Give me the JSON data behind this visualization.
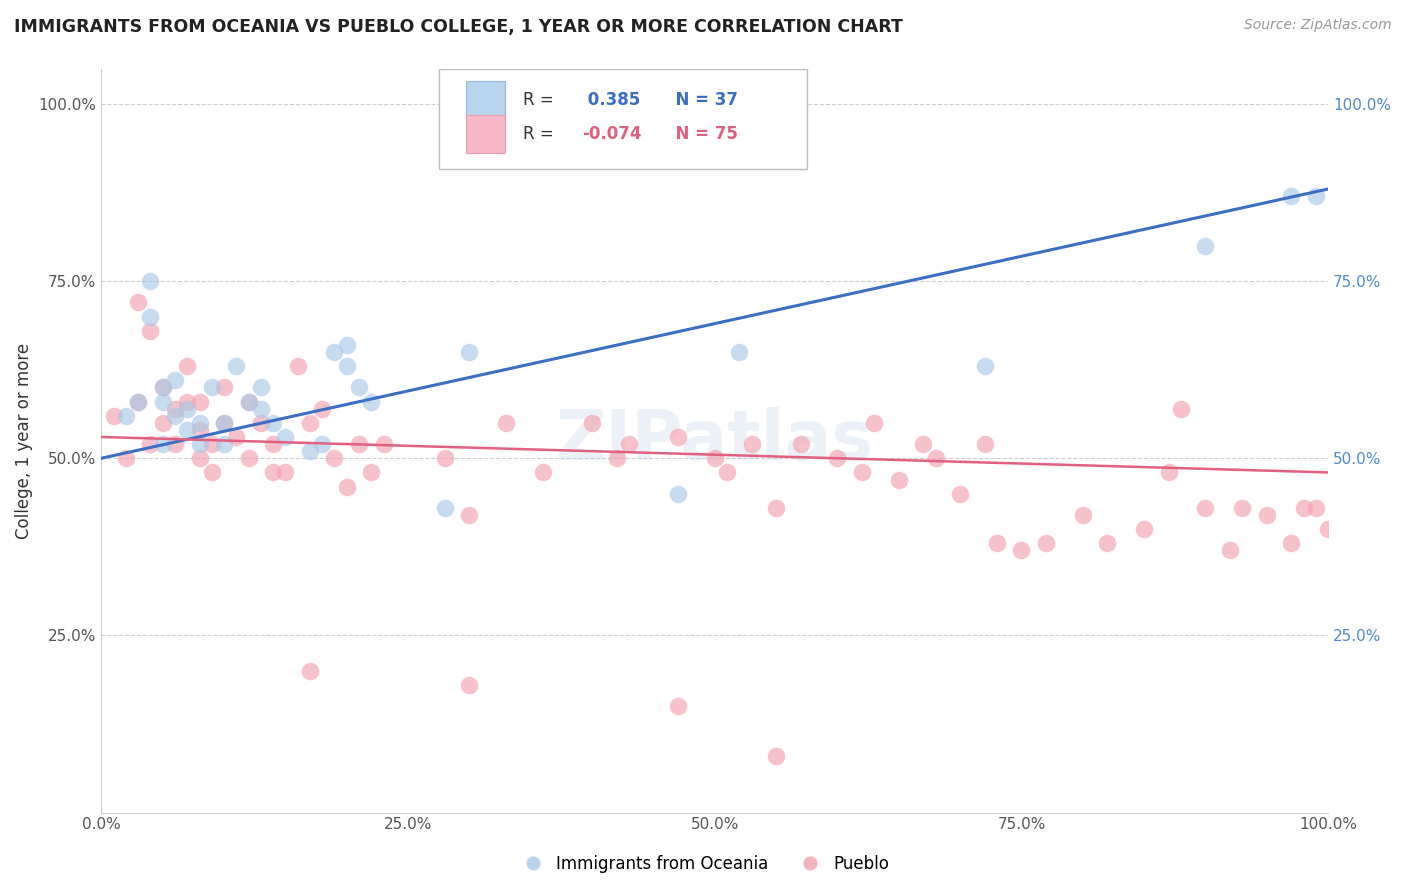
{
  "title": "IMMIGRANTS FROM OCEANIA VS PUEBLO COLLEGE, 1 YEAR OR MORE CORRELATION CHART",
  "source_text": "Source: ZipAtlas.com",
  "ylabel": "College, 1 year or more",
  "xlim": [
    0.0,
    1.0
  ],
  "ylim": [
    0.0,
    1.05
  ],
  "xtick_labels": [
    "0.0%",
    "25.0%",
    "50.0%",
    "75.0%",
    "100.0%"
  ],
  "xtick_vals": [
    0.0,
    0.25,
    0.5,
    0.75,
    1.0
  ],
  "ytick_labels": [
    "25.0%",
    "50.0%",
    "75.0%",
    "100.0%"
  ],
  "ytick_vals": [
    0.25,
    0.5,
    0.75,
    1.0
  ],
  "legend_entries": [
    "Immigrants from Oceania",
    "Pueblo"
  ],
  "R_blue": 0.385,
  "N_blue": 37,
  "R_pink": -0.074,
  "N_pink": 75,
  "blue_color": "#a8c8e8",
  "pink_color": "#f4a0b0",
  "blue_line_color": "#3a6fc4",
  "pink_line_color": "#e06080",
  "watermark": "ZIPatlas",
  "blue_scatter_x": [
    0.02,
    0.03,
    0.04,
    0.04,
    0.05,
    0.05,
    0.05,
    0.06,
    0.06,
    0.07,
    0.07,
    0.08,
    0.08,
    0.09,
    0.1,
    0.1,
    0.11,
    0.12,
    0.13,
    0.13,
    0.14,
    0.15,
    0.17,
    0.18,
    0.19,
    0.2,
    0.2,
    0.21,
    0.22,
    0.28,
    0.3,
    0.47,
    0.52,
    0.72,
    0.9,
    0.97,
    0.99
  ],
  "blue_scatter_y": [
    0.56,
    0.58,
    0.7,
    0.75,
    0.52,
    0.58,
    0.6,
    0.56,
    0.61,
    0.54,
    0.57,
    0.52,
    0.55,
    0.6,
    0.52,
    0.55,
    0.63,
    0.58,
    0.57,
    0.6,
    0.55,
    0.53,
    0.51,
    0.52,
    0.65,
    0.63,
    0.66,
    0.6,
    0.58,
    0.43,
    0.65,
    0.45,
    0.65,
    0.63,
    0.8,
    0.87,
    0.87
  ],
  "pink_scatter_x": [
    0.01,
    0.02,
    0.03,
    0.03,
    0.04,
    0.04,
    0.05,
    0.05,
    0.06,
    0.06,
    0.07,
    0.07,
    0.08,
    0.08,
    0.08,
    0.09,
    0.09,
    0.1,
    0.1,
    0.11,
    0.12,
    0.12,
    0.13,
    0.14,
    0.14,
    0.15,
    0.16,
    0.17,
    0.18,
    0.19,
    0.2,
    0.21,
    0.22,
    0.23,
    0.28,
    0.3,
    0.33,
    0.36,
    0.4,
    0.42,
    0.43,
    0.47,
    0.5,
    0.51,
    0.53,
    0.55,
    0.57,
    0.6,
    0.62,
    0.63,
    0.65,
    0.67,
    0.68,
    0.7,
    0.72,
    0.73,
    0.75,
    0.77,
    0.8,
    0.82,
    0.85,
    0.87,
    0.88,
    0.9,
    0.92,
    0.93,
    0.95,
    0.97,
    0.98,
    0.99,
    1.0,
    0.17,
    0.3,
    0.47,
    0.55
  ],
  "pink_scatter_y": [
    0.56,
    0.5,
    0.72,
    0.58,
    0.52,
    0.68,
    0.6,
    0.55,
    0.52,
    0.57,
    0.63,
    0.58,
    0.5,
    0.54,
    0.58,
    0.48,
    0.52,
    0.55,
    0.6,
    0.53,
    0.5,
    0.58,
    0.55,
    0.48,
    0.52,
    0.48,
    0.63,
    0.55,
    0.57,
    0.5,
    0.46,
    0.52,
    0.48,
    0.52,
    0.5,
    0.42,
    0.55,
    0.48,
    0.55,
    0.5,
    0.52,
    0.53,
    0.5,
    0.48,
    0.52,
    0.43,
    0.52,
    0.5,
    0.48,
    0.55,
    0.47,
    0.52,
    0.5,
    0.45,
    0.52,
    0.38,
    0.37,
    0.38,
    0.42,
    0.38,
    0.4,
    0.48,
    0.57,
    0.43,
    0.37,
    0.43,
    0.42,
    0.38,
    0.43,
    0.43,
    0.4,
    0.2,
    0.18,
    0.15,
    0.08
  ]
}
